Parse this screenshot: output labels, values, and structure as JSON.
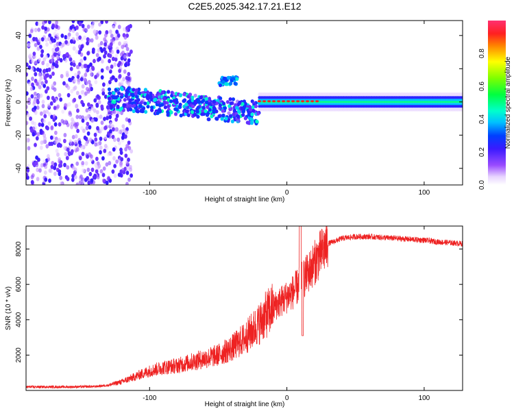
{
  "chart_data": [
    {
      "type": "heatmap",
      "title": "C2E5.2025.342.17.21.E12",
      "xlabel": "Height of straight line (km)",
      "ylabel": "Frequency (Hz)",
      "xlim": [
        -190,
        128
      ],
      "ylim": [
        -50,
        49
      ],
      "x_ticks": [
        -100,
        0,
        100
      ],
      "y_ticks": [
        -40,
        -20,
        0,
        20,
        40
      ],
      "colorbar": {
        "label": "Normalized spectral amplitude",
        "range": [
          0,
          1
        ],
        "ticks": [
          0.0,
          0.2,
          0.4,
          0.6,
          0.8
        ]
      },
      "regions": [
        {
          "name": "noise",
          "x_range": [
            -190,
            -125
          ],
          "freq_range": [
            -50,
            49
          ],
          "amplitude": 0.1
        },
        {
          "name": "turbulent",
          "x_range": [
            -130,
            -20
          ],
          "freq_range": [
            -12,
            16
          ],
          "amplitude": 0.4
        },
        {
          "name": "coherent",
          "x_range": [
            -20,
            128
          ],
          "freq_center": 0,
          "freq_halfwidth": 4,
          "amplitude": 0.5
        },
        {
          "name": "peak",
          "x_range": [
            -20,
            22
          ],
          "freq_center": 0,
          "amplitude": 0.9
        }
      ]
    },
    {
      "type": "line",
      "xlabel": "Height of straight line (km)",
      "ylabel": "SNR (10 * v/v)",
      "xlim": [
        -190,
        128
      ],
      "ylim": [
        0,
        9300
      ],
      "x_ticks": [
        -100,
        0,
        100
      ],
      "y_ticks": [
        2000,
        4000,
        6000,
        8000
      ],
      "series": [
        {
          "name": "SNR",
          "color": "#ee2222",
          "x": [
            -190,
            -160,
            -140,
            -130,
            -120,
            -110,
            -100,
            -90,
            -80,
            -70,
            -60,
            -50,
            -40,
            -35,
            -30,
            -25,
            -20,
            -15,
            -10,
            -5,
            0,
            5,
            10,
            15,
            20,
            25,
            30,
            40,
            50,
            60,
            70,
            80,
            90,
            100,
            110,
            120,
            128
          ],
          "y": [
            200,
            200,
            220,
            300,
            500,
            800,
            1100,
            1300,
            1400,
            1600,
            1800,
            2000,
            2400,
            2700,
            3000,
            3400,
            3800,
            4300,
            4700,
            5000,
            5300,
            5600,
            6100,
            6600,
            7200,
            7800,
            8300,
            8600,
            8700,
            8700,
            8650,
            8600,
            8550,
            8500,
            8400,
            8350,
            8300
          ]
        }
      ]
    }
  ]
}
